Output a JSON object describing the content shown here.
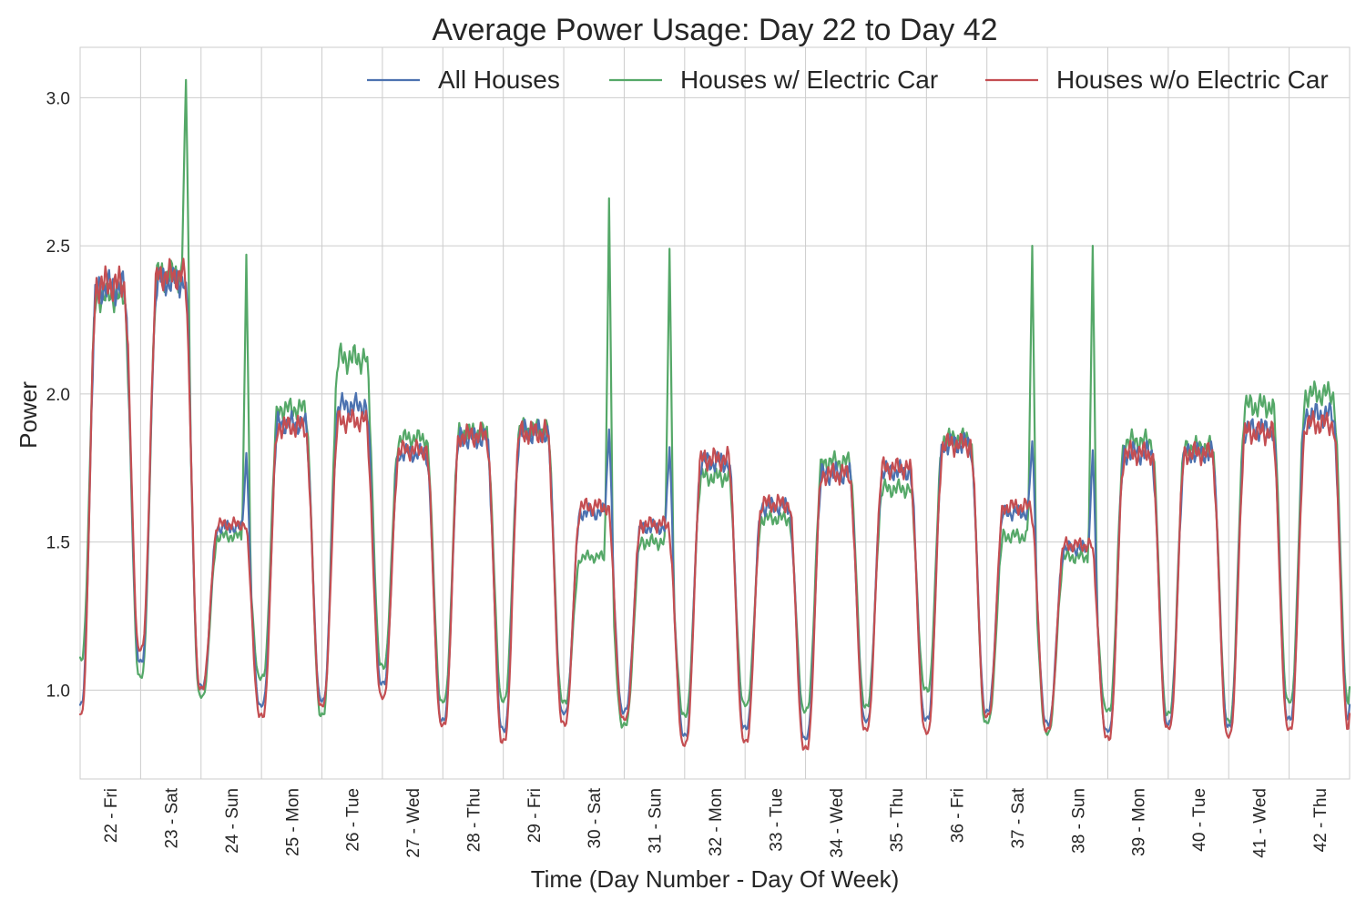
{
  "chart_data": {
    "type": "line",
    "title": "Average Power Usage: Day 22 to Day 42",
    "xlabel": "Time (Day Number - Day Of Week)",
    "ylabel": "Power",
    "xlim": [
      22,
      43
    ],
    "ylim": [
      0.7,
      3.17
    ],
    "yticks": [
      1.0,
      1.5,
      2.0,
      2.5,
      3.0
    ],
    "ytick_labels": [
      "1.0",
      "1.5",
      "2.0",
      "2.5",
      "3.0"
    ],
    "categories": [
      "22 - Fri",
      "23 - Sat",
      "24 - Sun",
      "25 - Mon",
      "26 - Tue",
      "27 - Wed",
      "28 - Thu",
      "29 - Fri",
      "30 - Sat",
      "31 - Sun",
      "32 - Mon",
      "33 - Tue",
      "34 - Wed",
      "35 - Thu",
      "36 - Fri",
      "37 - Sat",
      "38 - Sun",
      "39 - Mon",
      "40 - Tue",
      "41 - Wed",
      "42 - Thu"
    ],
    "grid": true,
    "legend_position": "top-right",
    "series": [
      {
        "name": "All Houses",
        "color": "#4c72b0",
        "daily_peak": [
          2.36,
          2.38,
          1.55,
          1.9,
          1.96,
          1.8,
          1.85,
          1.87,
          1.6,
          1.55,
          1.77,
          1.62,
          1.73,
          1.74,
          1.83,
          1.6,
          1.48,
          1.8,
          1.8,
          1.88,
          1.93
        ],
        "daily_min": [
          0.95,
          1.1,
          1.01,
          0.95,
          0.97,
          1.02,
          0.9,
          0.87,
          0.92,
          0.93,
          0.85,
          0.87,
          0.84,
          0.9,
          0.9,
          0.93,
          0.89,
          0.86,
          0.89,
          0.88,
          0.9
        ],
        "spikes": [
          {
            "x": 23.75,
            "y": 2.32
          },
          {
            "x": 24.75,
            "y": 1.8
          },
          {
            "x": 30.75,
            "y": 1.88
          },
          {
            "x": 31.75,
            "y": 1.82
          },
          {
            "x": 37.75,
            "y": 1.84
          },
          {
            "x": 38.75,
            "y": 1.81
          }
        ]
      },
      {
        "name": "Houses w/ Electric Car",
        "color": "#55a868",
        "daily_peak": [
          2.33,
          2.4,
          1.52,
          1.95,
          2.12,
          1.85,
          1.87,
          1.88,
          1.45,
          1.5,
          1.72,
          1.58,
          1.77,
          1.68,
          1.85,
          1.52,
          1.45,
          1.84,
          1.82,
          1.96,
          2.0
        ],
        "daily_min": [
          1.1,
          1.05,
          0.98,
          1.04,
          0.92,
          1.08,
          0.96,
          0.97,
          0.96,
          0.88,
          0.92,
          0.95,
          0.93,
          0.95,
          1.0,
          0.89,
          0.86,
          0.93,
          0.92,
          0.9,
          0.96
        ],
        "spikes": [
          {
            "x": 23.75,
            "y": 3.06
          },
          {
            "x": 24.75,
            "y": 2.47
          },
          {
            "x": 30.75,
            "y": 2.66
          },
          {
            "x": 31.75,
            "y": 2.49
          },
          {
            "x": 37.75,
            "y": 2.5
          },
          {
            "x": 38.75,
            "y": 2.5
          }
        ]
      },
      {
        "name": "Houses w/o Electric Car",
        "color": "#c44e52",
        "daily_peak": [
          2.37,
          2.4,
          1.56,
          1.89,
          1.91,
          1.81,
          1.86,
          1.87,
          1.62,
          1.56,
          1.78,
          1.63,
          1.73,
          1.75,
          1.83,
          1.62,
          1.49,
          1.8,
          1.8,
          1.87,
          1.9
        ],
        "daily_min": [
          0.92,
          1.14,
          1.01,
          0.91,
          0.95,
          0.98,
          0.88,
          0.83,
          0.89,
          0.9,
          0.82,
          0.83,
          0.8,
          0.87,
          0.86,
          0.91,
          0.87,
          0.84,
          0.87,
          0.85,
          0.87
        ],
        "spikes": []
      }
    ]
  }
}
